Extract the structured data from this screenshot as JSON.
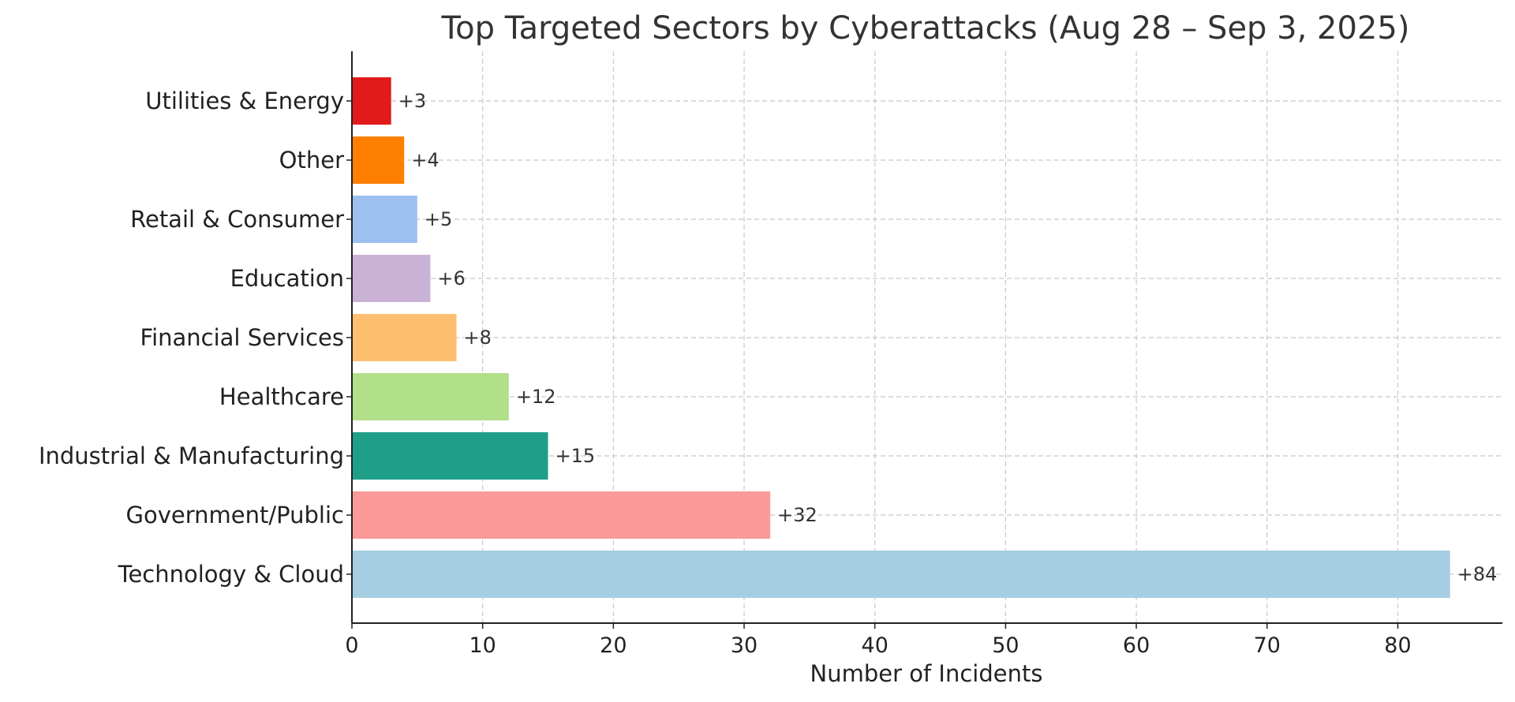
{
  "chart_data": {
    "type": "bar",
    "orientation": "horizontal",
    "title": "Top Targeted Sectors by Cyberattacks (Aug 28 – Sep 3, 2025)",
    "xlabel": "Number of Incidents",
    "ylabel": "",
    "xlim": [
      0,
      88
    ],
    "xticks": [
      0,
      10,
      20,
      30,
      40,
      50,
      60,
      70,
      80
    ],
    "grid": true,
    "categories": [
      "Utilities & Energy",
      "Other",
      "Retail & Consumer",
      "Education",
      "Financial Services",
      "Healthcare",
      "Industrial & Manufacturing",
      "Government/Public",
      "Technology & Cloud"
    ],
    "values": [
      3,
      4,
      5,
      6,
      8,
      12,
      15,
      32,
      84
    ],
    "labels": [
      "+3",
      "+4",
      "+5",
      "+6",
      "+8",
      "+12",
      "+15",
      "+32",
      "+84"
    ],
    "colors": [
      "#e31a1c",
      "#ff7f00",
      "#9cc0f0",
      "#c9b2d6",
      "#fdbf6f",
      "#b2df8a",
      "#1f9e89",
      "#fb9a99",
      "#a6cee3"
    ]
  }
}
